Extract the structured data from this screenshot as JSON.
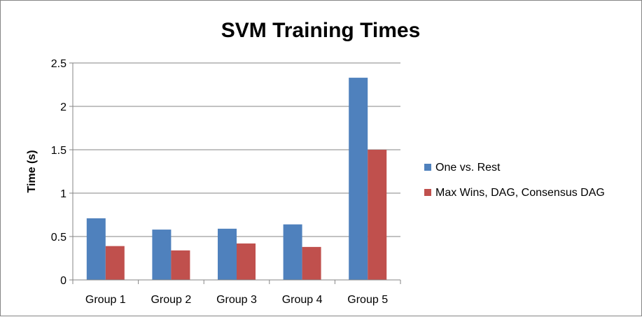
{
  "chart_data": {
    "type": "bar",
    "title": "SVM Training Times",
    "xlabel": "",
    "ylabel": "Time (s)",
    "ylim": [
      0,
      2.5
    ],
    "yticks": [
      "0",
      "0.5",
      "1",
      "1.5",
      "2",
      "2.5"
    ],
    "categories": [
      "Group 1",
      "Group 2",
      "Group 3",
      "Group 4",
      "Group 5"
    ],
    "series": [
      {
        "name": "One vs. Rest",
        "color": "#4F81BD",
        "values": [
          0.71,
          0.58,
          0.59,
          0.64,
          2.33
        ]
      },
      {
        "name": "Max Wins, DAG, Consensus DAG",
        "color": "#C0504D",
        "values": [
          0.39,
          0.34,
          0.42,
          0.38,
          1.5
        ]
      }
    ],
    "grid": true,
    "legend_position": "right"
  }
}
